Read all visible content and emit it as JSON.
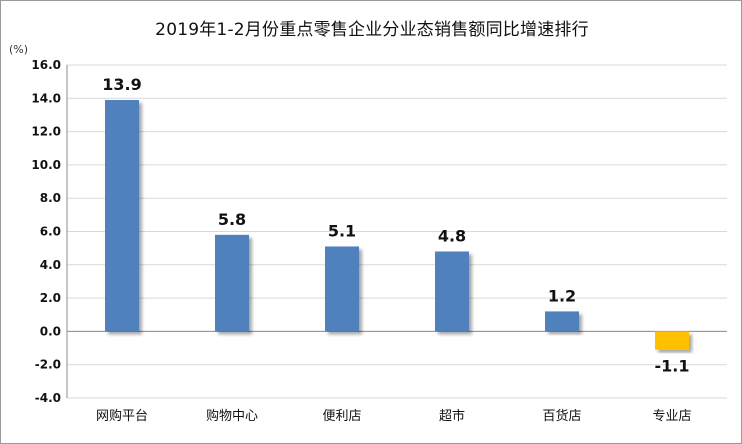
{
  "chart_data": {
    "type": "bar",
    "title": "2019年1-2月份重点零售企业分业态销售额同比增速排行",
    "unit_label": "(%)",
    "xlabel": "",
    "ylabel": "",
    "categories": [
      "网购平台",
      "购物中心",
      "便利店",
      "超市",
      "百货店",
      "专业店"
    ],
    "series": [
      {
        "values": [
          13.9,
          5.8,
          5.1,
          4.8,
          1.2,
          -1.1
        ],
        "data_labels": [
          "13.9",
          "5.8",
          "5.1",
          "4.8",
          "1.2",
          "-1.1"
        ]
      }
    ],
    "ylim": [
      -4.0,
      16.0
    ],
    "yticks": [
      16.0,
      14.0,
      12.0,
      10.0,
      8.0,
      6.0,
      4.0,
      2.0,
      0.0,
      -2.0,
      -4.0
    ],
    "ytick_labels": [
      "16.0",
      "14.0",
      "12.0",
      "10.0",
      "8.0",
      "6.0",
      "4.0",
      "2.0",
      "0.0",
      "-2.0",
      "-4.0"
    ],
    "grid": true,
    "legend": "none",
    "colors": {
      "positive": "#4f81bd",
      "negative": "#ffc000",
      "grid": "#d9d9d9",
      "axis": "#8c8c8c"
    }
  }
}
